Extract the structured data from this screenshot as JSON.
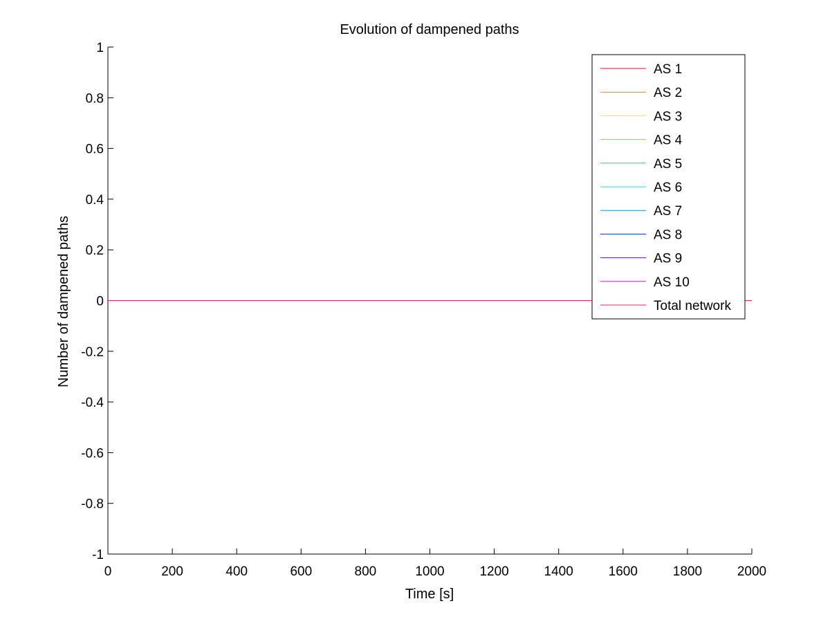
{
  "chart_data": {
    "type": "line",
    "title": "Evolution of dampened paths",
    "xlabel": "Time [s]",
    "ylabel": "Number of dampened paths",
    "xlim": [
      0,
      2000
    ],
    "ylim": [
      -1,
      1
    ],
    "xticks": [
      0,
      200,
      400,
      600,
      800,
      1000,
      1200,
      1400,
      1600,
      1800,
      2000
    ],
    "yticks": [
      -1,
      -0.8,
      -0.6,
      -0.4,
      -0.2,
      0,
      0.2,
      0.4,
      0.6,
      0.8,
      1
    ],
    "xtick_labels": [
      "0",
      "200",
      "400",
      "600",
      "800",
      "1000",
      "1200",
      "1400",
      "1600",
      "1800",
      "2000"
    ],
    "ytick_labels": [
      "-1",
      "-0.8",
      "-0.6",
      "-0.4",
      "-0.2",
      "0",
      "0.2",
      "0.4",
      "0.6",
      "0.8",
      "1"
    ],
    "grid": false,
    "legend_position": "top-right",
    "series": [
      {
        "name": "AS 1",
        "color": "#cc1a33",
        "x": [
          0,
          2000
        ],
        "y": [
          0,
          0
        ]
      },
      {
        "name": "AS 2",
        "color": "#e68a00",
        "x": [
          0,
          2000
        ],
        "y": [
          0,
          0
        ]
      },
      {
        "name": "AS 3",
        "color": "#ffee00",
        "x": [
          0,
          2000
        ],
        "y": [
          0,
          0
        ]
      },
      {
        "name": "AS 4",
        "color": "#88dd22",
        "x": [
          0,
          2000
        ],
        "y": [
          0,
          0
        ]
      },
      {
        "name": "AS 5",
        "color": "#22dd55",
        "x": [
          0,
          2000
        ],
        "y": [
          0,
          0
        ]
      },
      {
        "name": "AS 6",
        "color": "#22dddd",
        "x": [
          0,
          2000
        ],
        "y": [
          0,
          0
        ]
      },
      {
        "name": "AS 7",
        "color": "#1199cc",
        "x": [
          0,
          2000
        ],
        "y": [
          0,
          0
        ]
      },
      {
        "name": "AS 8",
        "color": "#1133bb",
        "x": [
          0,
          2000
        ],
        "y": [
          0,
          0
        ]
      },
      {
        "name": "AS 9",
        "color": "#5511cc",
        "x": [
          0,
          2000
        ],
        "y": [
          0,
          0
        ]
      },
      {
        "name": "AS 10",
        "color": "#cc22dd",
        "x": [
          0,
          2000
        ],
        "y": [
          0,
          0
        ]
      },
      {
        "name": "Total network",
        "color": "#e0226e",
        "x": [
          0,
          2000
        ],
        "y": [
          0,
          0
        ]
      }
    ]
  }
}
